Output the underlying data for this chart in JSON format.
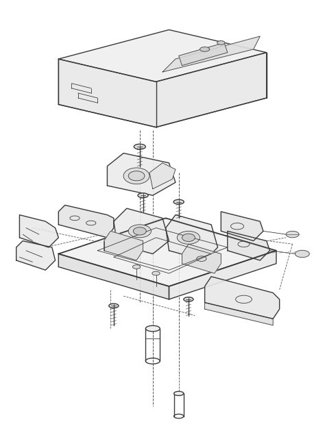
{
  "background_color": "#ffffff",
  "line_color": "#3a3a3a",
  "dashed_color": "#555555",
  "figsize": [
    4.74,
    6.32
  ],
  "dpi": 100,
  "lw_main": 1.0,
  "lw_thin": 0.6,
  "lw_thick": 1.3
}
